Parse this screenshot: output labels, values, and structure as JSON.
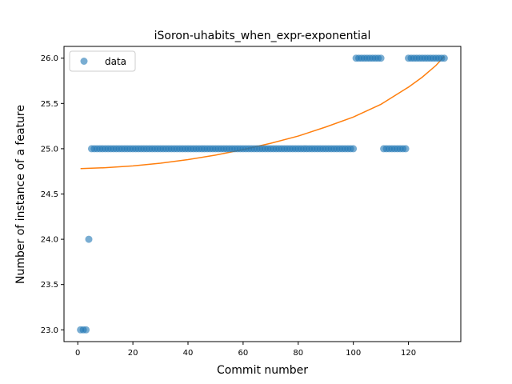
{
  "chart_data": {
    "type": "scatter",
    "title": "iSoron-uhabits_when_expr-exponential",
    "xlabel": "Commit number",
    "ylabel": "Number of instance of a feature",
    "xlim": [
      -5,
      139
    ],
    "ylim": [
      22.87,
      26.13
    ],
    "xticks": [
      0,
      20,
      40,
      60,
      80,
      100,
      120
    ],
    "yticks": [
      23.0,
      23.5,
      24.0,
      24.5,
      25.0,
      25.5,
      26.0
    ],
    "xtick_labels": [
      "0",
      "20",
      "40",
      "60",
      "80",
      "100",
      "120"
    ],
    "ytick_labels": [
      "23.0",
      "23.5",
      "24.0",
      "24.5",
      "25.0",
      "25.5",
      "26.0"
    ],
    "grid": false,
    "legend": {
      "position": "top-left",
      "entries": [
        "data"
      ]
    },
    "colors": {
      "data": "#1f77b4",
      "fit": "#ff7f0e"
    },
    "series": [
      {
        "name": "data",
        "kind": "scatter",
        "points": [
          [
            1,
            23
          ],
          [
            2,
            23
          ],
          [
            3,
            23
          ],
          [
            4,
            24
          ],
          [
            5,
            25
          ],
          [
            6,
            25
          ],
          [
            7,
            25
          ],
          [
            8,
            25
          ],
          [
            9,
            25
          ],
          [
            10,
            25
          ],
          [
            11,
            25
          ],
          [
            12,
            25
          ],
          [
            13,
            25
          ],
          [
            14,
            25
          ],
          [
            15,
            25
          ],
          [
            16,
            25
          ],
          [
            17,
            25
          ],
          [
            18,
            25
          ],
          [
            19,
            25
          ],
          [
            20,
            25
          ],
          [
            21,
            25
          ],
          [
            22,
            25
          ],
          [
            23,
            25
          ],
          [
            24,
            25
          ],
          [
            25,
            25
          ],
          [
            26,
            25
          ],
          [
            27,
            25
          ],
          [
            28,
            25
          ],
          [
            29,
            25
          ],
          [
            30,
            25
          ],
          [
            31,
            25
          ],
          [
            32,
            25
          ],
          [
            33,
            25
          ],
          [
            34,
            25
          ],
          [
            35,
            25
          ],
          [
            36,
            25
          ],
          [
            37,
            25
          ],
          [
            38,
            25
          ],
          [
            39,
            25
          ],
          [
            40,
            25
          ],
          [
            41,
            25
          ],
          [
            42,
            25
          ],
          [
            43,
            25
          ],
          [
            44,
            25
          ],
          [
            45,
            25
          ],
          [
            46,
            25
          ],
          [
            47,
            25
          ],
          [
            48,
            25
          ],
          [
            49,
            25
          ],
          [
            50,
            25
          ],
          [
            51,
            25
          ],
          [
            52,
            25
          ],
          [
            53,
            25
          ],
          [
            54,
            25
          ],
          [
            55,
            25
          ],
          [
            56,
            25
          ],
          [
            57,
            25
          ],
          [
            58,
            25
          ],
          [
            59,
            25
          ],
          [
            60,
            25
          ],
          [
            61,
            25
          ],
          [
            62,
            25
          ],
          [
            63,
            25
          ],
          [
            64,
            25
          ],
          [
            65,
            25
          ],
          [
            66,
            25
          ],
          [
            67,
            25
          ],
          [
            68,
            25
          ],
          [
            69,
            25
          ],
          [
            70,
            25
          ],
          [
            71,
            25
          ],
          [
            72,
            25
          ],
          [
            73,
            25
          ],
          [
            74,
            25
          ],
          [
            75,
            25
          ],
          [
            76,
            25
          ],
          [
            77,
            25
          ],
          [
            78,
            25
          ],
          [
            79,
            25
          ],
          [
            80,
            25
          ],
          [
            81,
            25
          ],
          [
            82,
            25
          ],
          [
            83,
            25
          ],
          [
            84,
            25
          ],
          [
            85,
            25
          ],
          [
            86,
            25
          ],
          [
            87,
            25
          ],
          [
            88,
            25
          ],
          [
            89,
            25
          ],
          [
            90,
            25
          ],
          [
            91,
            25
          ],
          [
            92,
            25
          ],
          [
            93,
            25
          ],
          [
            94,
            25
          ],
          [
            95,
            25
          ],
          [
            96,
            25
          ],
          [
            97,
            25
          ],
          [
            98,
            25
          ],
          [
            99,
            25
          ],
          [
            100,
            25
          ],
          [
            101,
            26
          ],
          [
            102,
            26
          ],
          [
            103,
            26
          ],
          [
            104,
            26
          ],
          [
            105,
            26
          ],
          [
            106,
            26
          ],
          [
            107,
            26
          ],
          [
            108,
            26
          ],
          [
            109,
            26
          ],
          [
            110,
            26
          ],
          [
            111,
            25
          ],
          [
            112,
            25
          ],
          [
            113,
            25
          ],
          [
            114,
            25
          ],
          [
            115,
            25
          ],
          [
            116,
            25
          ],
          [
            117,
            25
          ],
          [
            118,
            25
          ],
          [
            119,
            25
          ],
          [
            120,
            26
          ],
          [
            121,
            26
          ],
          [
            122,
            26
          ],
          [
            123,
            26
          ],
          [
            124,
            26
          ],
          [
            125,
            26
          ],
          [
            126,
            26
          ],
          [
            127,
            26
          ],
          [
            128,
            26
          ],
          [
            129,
            26
          ],
          [
            130,
            26
          ],
          [
            131,
            26
          ],
          [
            132,
            26
          ],
          [
            133,
            26
          ]
        ]
      },
      {
        "kind": "line",
        "points": [
          [
            1,
            24.78
          ],
          [
            10,
            24.79
          ],
          [
            20,
            24.81
          ],
          [
            30,
            24.84
          ],
          [
            40,
            24.88
          ],
          [
            50,
            24.93
          ],
          [
            60,
            24.99
          ],
          [
            70,
            25.06
          ],
          [
            80,
            25.14
          ],
          [
            90,
            25.24
          ],
          [
            100,
            25.35
          ],
          [
            110,
            25.49
          ],
          [
            120,
            25.68
          ],
          [
            125,
            25.79
          ],
          [
            130,
            25.92
          ],
          [
            133,
            26.02
          ]
        ]
      }
    ]
  }
}
